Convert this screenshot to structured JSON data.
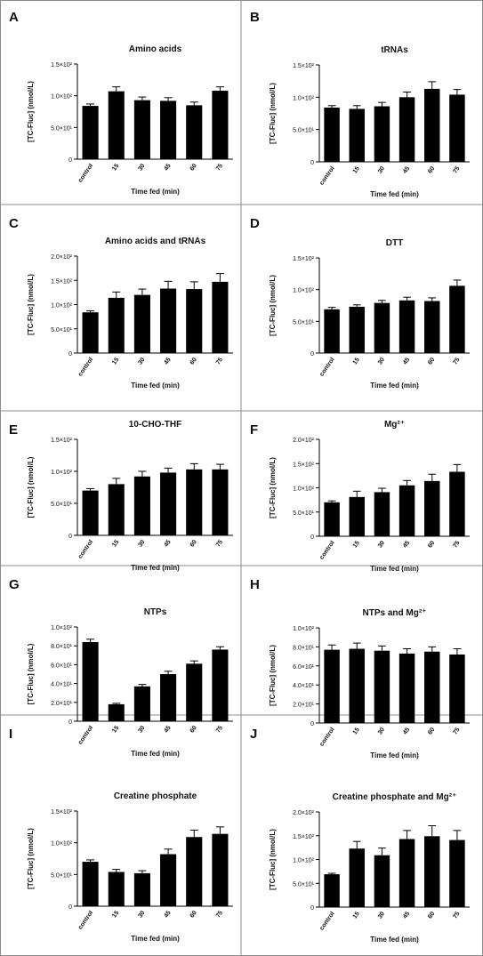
{
  "chart_data": [
    {
      "panel_letter": "A",
      "type": "bar",
      "title": "Amino acids",
      "ylabel": "[TC-Fluc] (nmol/L)",
      "xlabel": "Time fed (min)",
      "categories": [
        "control",
        "15",
        "30",
        "45",
        "60",
        "75"
      ],
      "values": [
        84,
        107,
        93,
        92,
        85,
        108
      ],
      "errors": [
        3,
        7,
        5,
        5,
        5,
        6
      ],
      "ylim": [
        0,
        150
      ],
      "yticks": [
        0,
        50,
        100,
        150
      ],
      "ytick_labels": [
        "0",
        "5.0×10¹",
        "1.0×10²",
        "1.5×10²"
      ]
    },
    {
      "panel_letter": "B",
      "type": "bar",
      "title": "tRNAs",
      "ylabel": "[TC-Fluc] (nmol/L)",
      "xlabel": "Time fed (min)",
      "categories": [
        "control",
        "15",
        "30",
        "45",
        "60",
        "75"
      ],
      "values": [
        84,
        82,
        86,
        100,
        113,
        104
      ],
      "errors": [
        3,
        5,
        6,
        8,
        11,
        8
      ],
      "ylim": [
        0,
        150
      ],
      "yticks": [
        0,
        50,
        100,
        150
      ],
      "ytick_labels": [
        "0",
        "5.0×10¹",
        "1.0×10²",
        "1.5×10²"
      ]
    },
    {
      "panel_letter": "C",
      "type": "bar",
      "title": "Amino acids and tRNAs",
      "ylabel": "[TC-Fluc] (nmol/L)",
      "xlabel": "Time fed (min)",
      "categories": [
        "control",
        "15",
        "30",
        "45",
        "60",
        "75"
      ],
      "values": [
        84,
        114,
        120,
        133,
        132,
        147
      ],
      "errors": [
        3,
        12,
        12,
        15,
        15,
        17
      ],
      "ylim": [
        0,
        200
      ],
      "yticks": [
        0,
        50,
        100,
        150,
        200
      ],
      "ytick_labels": [
        "0",
        "5.0×10¹",
        "1.0×10²",
        "1.5×10²",
        "2.0×10²"
      ]
    },
    {
      "panel_letter": "D",
      "type": "bar",
      "title": "DTT",
      "ylabel": "[TC-Fluc] (nmol/L)",
      "xlabel": "Time fed (min)",
      "categories": [
        "control",
        "15",
        "30",
        "45",
        "60",
        "75"
      ],
      "values": [
        69,
        73,
        79,
        83,
        82,
        106
      ],
      "errors": [
        3,
        3,
        4,
        5,
        5,
        9
      ],
      "ylim": [
        0,
        150
      ],
      "yticks": [
        0,
        50,
        100,
        150
      ],
      "ytick_labels": [
        "0",
        "5.0×10¹",
        "1.0×10²",
        "1.5×10²"
      ]
    },
    {
      "panel_letter": "E",
      "type": "bar",
      "title": "10-CHO-THF",
      "ylabel": "[TC-Fluc] (nmol/L)",
      "xlabel": "Time fed (min)",
      "categories": [
        "control",
        "15",
        "30",
        "45",
        "60",
        "75"
      ],
      "values": [
        70,
        80,
        92,
        98,
        103,
        103
      ],
      "errors": [
        3,
        9,
        8,
        7,
        9,
        8
      ],
      "ylim": [
        0,
        150
      ],
      "yticks": [
        0,
        50,
        100,
        150
      ],
      "ytick_labels": [
        "0",
        "5.0×10¹",
        "1.0×10²",
        "1.5×10²"
      ]
    },
    {
      "panel_letter": "F",
      "type": "bar",
      "title": "Mg²⁺",
      "ylabel": "[TC-Fluc] (nmol/L)",
      "xlabel": "Time fed (min)",
      "categories": [
        "control",
        "15",
        "30",
        "45",
        "60",
        "75"
      ],
      "values": [
        70,
        81,
        91,
        105,
        114,
        133
      ],
      "errors": [
        3,
        12,
        8,
        10,
        14,
        15
      ],
      "ylim": [
        0,
        200
      ],
      "yticks": [
        0,
        50,
        100,
        150,
        200
      ],
      "ytick_labels": [
        "0",
        "5.0×10¹",
        "1.0×10²",
        "1.5×10²",
        "2.0×10²"
      ]
    },
    {
      "panel_letter": "G",
      "type": "bar",
      "title": "NTPs",
      "ylabel": "[TC-Fluc] (nmol/L)",
      "xlabel": "Time fed (min)",
      "categories": [
        "control",
        "15",
        "30",
        "45",
        "60",
        "75"
      ],
      "values": [
        84,
        18,
        37,
        50,
        61,
        76
      ],
      "errors": [
        3,
        1,
        2,
        3,
        3,
        3
      ],
      "ylim": [
        0,
        100
      ],
      "yticks": [
        0,
        20,
        40,
        60,
        80,
        100
      ],
      "ytick_labels": [
        "0",
        "2.0×10¹",
        "4.0×10¹",
        "6.0×10¹",
        "8.0×10¹",
        "1.0×10²"
      ]
    },
    {
      "panel_letter": "H",
      "type": "bar",
      "title": "NTPs and Mg²⁺",
      "ylabel": "[TC-Fluc] (nmol/L)",
      "xlabel": "Time fed (min)",
      "categories": [
        "control",
        "15",
        "30",
        "45",
        "60",
        "75"
      ],
      "values": [
        77,
        78,
        76,
        73,
        75,
        72
      ],
      "errors": [
        5,
        6,
        5,
        5,
        5,
        6
      ],
      "ylim": [
        0,
        100
      ],
      "yticks": [
        0,
        20,
        40,
        60,
        80,
        100
      ],
      "ytick_labels": [
        "0",
        "2.0×10¹",
        "4.0×10¹",
        "6.0×10¹",
        "8.0×10¹",
        "1.0×10²"
      ]
    },
    {
      "panel_letter": "I",
      "type": "bar",
      "title": "Creatine phosphate",
      "ylabel": "[TC-Fluc] (nmol/L)",
      "xlabel": "Time fed (min)",
      "categories": [
        "control",
        "15",
        "30",
        "45",
        "60",
        "75"
      ],
      "values": [
        70,
        54,
        52,
        82,
        109,
        114
      ],
      "errors": [
        3,
        4,
        4,
        8,
        11,
        11
      ],
      "ylim": [
        0,
        150
      ],
      "yticks": [
        0,
        50,
        100,
        150
      ],
      "ytick_labels": [
        "0",
        "5.0×10¹",
        "1.0×10²",
        "1.5×10²"
      ]
    },
    {
      "panel_letter": "J",
      "type": "bar",
      "title": "Creatine phosphate and Mg²⁺",
      "ylabel": "[TC-Fluc] (nmol/L)",
      "xlabel": "Time fed (min)",
      "categories": [
        "control",
        "15",
        "30",
        "45",
        "60",
        "75"
      ],
      "values": [
        69,
        123,
        109,
        143,
        149,
        141
      ],
      "errors": [
        2,
        15,
        15,
        18,
        22,
        20
      ],
      "ylim": [
        0,
        200
      ],
      "yticks": [
        0,
        50,
        100,
        150,
        200
      ],
      "ytick_labels": [
        "0",
        "5.0×10¹",
        "1.0×10²",
        "1.5×10²",
        "2.0×10²"
      ]
    }
  ]
}
